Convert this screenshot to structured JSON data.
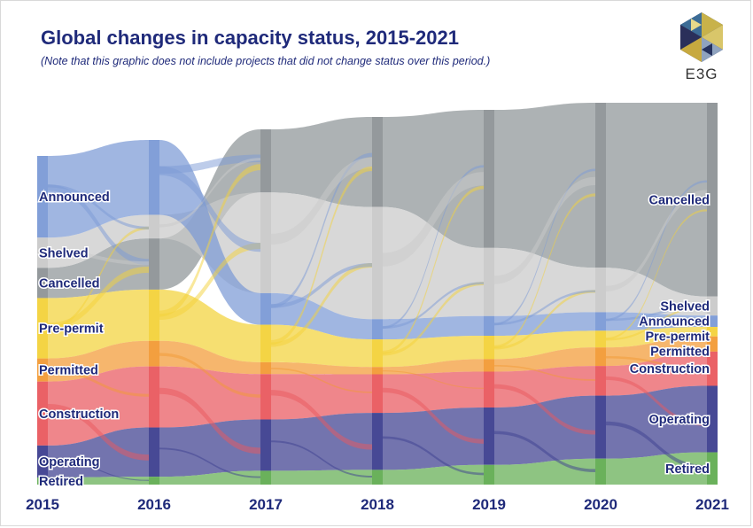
{
  "header": {
    "title": "Global changes in capacity status, 2015-2021",
    "subtitle": "(Note that this graphic does not include projects that did not change status over this period.)",
    "logo_text": "E3G"
  },
  "chart_data": {
    "type": "sankey",
    "title": "Global changes in capacity status, 2015-2021",
    "subtitle": "(Note that this graphic does not include projects that did not change status over this period.)",
    "years": [
      "2015",
      "2016",
      "2017",
      "2018",
      "2019",
      "2020",
      "2021"
    ],
    "statuses": [
      "Cancelled",
      "Shelved",
      "Announced",
      "Pre-permit",
      "Permitted",
      "Construction",
      "Operating",
      "Retired"
    ],
    "colors": {
      "Announced": "#7b9ad6",
      "Shelved": "#c9c9c9",
      "Cancelled": "#8e9497",
      "Pre-permit": "#f3d23a",
      "Permitted": "#f29a35",
      "Construction": "#e9585e",
      "Operating": "#3d3f8f",
      "Retired": "#62ad52"
    },
    "node_share_by_year": [
      {
        "year": "2015",
        "Announced": 0.23,
        "Shelved": 0.085,
        "Cancelled": 0.085,
        "Pre-permit": 0.17,
        "Permitted": 0.065,
        "Construction": 0.18,
        "Operating": 0.09,
        "Retired": 0.02
      },
      {
        "year": "2016",
        "Announced": 0.19,
        "Shelved": 0.06,
        "Cancelled": 0.13,
        "Pre-permit": 0.13,
        "Permitted": 0.065,
        "Construction": 0.155,
        "Operating": 0.125,
        "Retired": 0.02
      },
      {
        "year": "2017",
        "Announced": 0.08,
        "Shelved": 0.255,
        "Cancelled": 0.16,
        "Pre-permit": 0.095,
        "Permitted": 0.03,
        "Construction": 0.115,
        "Operating": 0.13,
        "Retired": 0.035
      },
      {
        "year": "2018",
        "Announced": 0.055,
        "Shelved": 0.305,
        "Cancelled": 0.245,
        "Pre-permit": 0.075,
        "Permitted": 0.02,
        "Construction": 0.105,
        "Operating": 0.155,
        "Retired": 0.04
      },
      {
        "year": "2019",
        "Announced": 0.055,
        "Shelved": 0.19,
        "Cancelled": 0.385,
        "Pre-permit": 0.065,
        "Permitted": 0.035,
        "Construction": 0.1,
        "Operating": 0.16,
        "Retired": 0.055
      },
      {
        "year": "2020",
        "Announced": 0.05,
        "Shelved": 0.12,
        "Cancelled": 0.445,
        "Pre-permit": 0.045,
        "Permitted": 0.05,
        "Construction": 0.08,
        "Operating": 0.17,
        "Retired": 0.07
      },
      {
        "year": "2021",
        "Announced": 0.03,
        "Shelved": 0.05,
        "Cancelled": 0.51,
        "Pre-permit": 0.025,
        "Permitted": 0.04,
        "Construction": 0.09,
        "Operating": 0.175,
        "Retired": 0.085
      }
    ],
    "labels_2015": [
      "Announced",
      "Shelved",
      "Cancelled",
      "Pre-permit",
      "Permitted",
      "Construction",
      "Operating",
      "Retired"
    ],
    "labels_2021": [
      "Cancelled",
      "Shelved",
      "Announced",
      "Pre-permit",
      "Permitted",
      "Construction",
      "Operating",
      "Retired"
    ],
    "left_order": [
      "Announced",
      "Shelved",
      "Cancelled",
      "Pre-permit",
      "Permitted",
      "Construction",
      "Operating",
      "Retired"
    ],
    "right_order": [
      "Cancelled",
      "Shelved",
      "Announced",
      "Pre-permit",
      "Permitted",
      "Construction",
      "Operating",
      "Retired"
    ],
    "grid": false,
    "legend": "none"
  }
}
